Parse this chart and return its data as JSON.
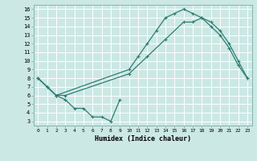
{
  "xlabel": "Humidex (Indice chaleur)",
  "bg_color": "#cce8e4",
  "grid_color": "#ffffff",
  "line_color": "#2e7d72",
  "xlim": [
    -0.5,
    23.5
  ],
  "ylim": [
    2.5,
    16.5
  ],
  "xticks": [
    0,
    1,
    2,
    3,
    4,
    5,
    6,
    7,
    8,
    9,
    10,
    11,
    12,
    13,
    14,
    15,
    16,
    17,
    18,
    19,
    20,
    21,
    22,
    23
  ],
  "yticks": [
    3,
    4,
    5,
    6,
    7,
    8,
    9,
    10,
    11,
    12,
    13,
    14,
    15,
    16
  ],
  "line1_x": [
    0,
    1,
    2,
    3,
    4,
    5,
    6,
    7,
    8,
    9
  ],
  "line1_y": [
    8,
    7,
    6,
    5.5,
    4.5,
    4.5,
    3.5,
    3.5,
    3.0,
    5.5
  ],
  "line2_x": [
    0,
    1,
    2,
    10,
    11,
    12,
    13,
    14,
    15,
    16,
    17,
    18,
    19,
    20,
    21,
    22,
    23
  ],
  "line2_y": [
    8,
    7,
    6,
    9.0,
    10.5,
    12.0,
    13.5,
    15.0,
    15.5,
    16.0,
    15.5,
    15.0,
    14.0,
    13.0,
    11.5,
    9.5,
    8.0
  ],
  "line3_x": [
    0,
    2,
    3,
    10,
    12,
    14,
    16,
    17,
    18,
    19,
    20,
    21,
    22,
    23
  ],
  "line3_y": [
    8,
    6,
    6,
    8.5,
    10.5,
    12.5,
    14.5,
    14.5,
    15.0,
    14.5,
    13.5,
    12.0,
    10.0,
    8.0
  ]
}
